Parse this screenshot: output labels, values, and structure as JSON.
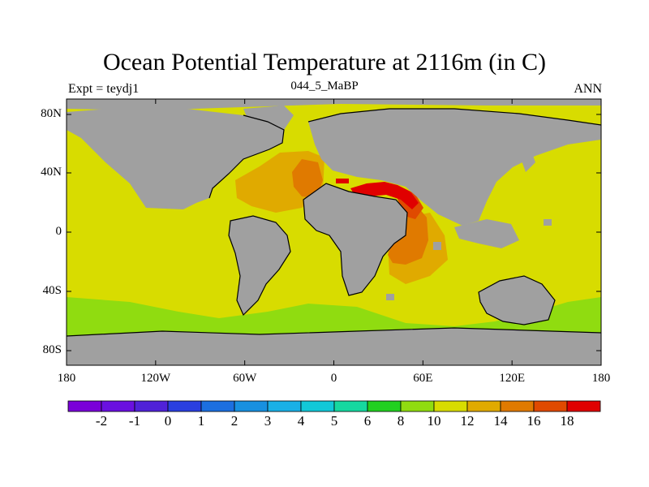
{
  "title": "Ocean Potential Temperature at 2116m (in C)",
  "subtitle": "044_5_MaBP",
  "left_label": "Expt = teydj1",
  "right_label": "ANN",
  "y_ticks": [
    "80N",
    "40N",
    "0",
    "40S",
    "80S"
  ],
  "x_ticks": [
    "180",
    "120W",
    "60W",
    "0",
    "60E",
    "120E",
    "180"
  ],
  "colorbar": {
    "colors": [
      "#7a00d9",
      "#6a10e0",
      "#5022d8",
      "#2a3fe0",
      "#1c6fe0",
      "#1890e0",
      "#1ab0e6",
      "#12c8d8",
      "#16d8a0",
      "#22d020",
      "#90dc10",
      "#d8dc00",
      "#e0aa00",
      "#e07a00",
      "#e04a00",
      "#e00000"
    ],
    "labels": [
      "-2",
      "-1",
      "0",
      "1",
      "2",
      "3",
      "4",
      "5",
      "6",
      "8",
      "10",
      "12",
      "14",
      "16",
      "18"
    ]
  },
  "colors": {
    "land": "#a0a0a0",
    "c10_12": "#d8dc00",
    "c8_10": "#90dc10",
    "c12_14": "#e0aa00",
    "c14_16": "#e07a00",
    "c16_18": "#e04a00",
    "c18_plus": "#e00000"
  }
}
